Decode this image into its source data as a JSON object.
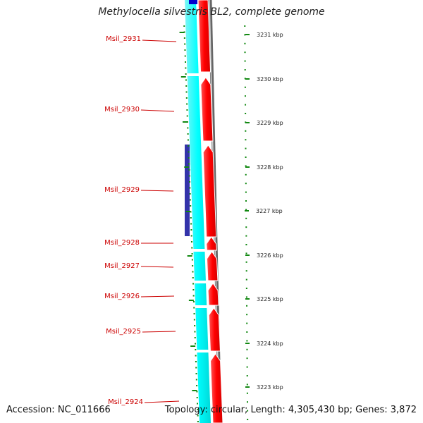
{
  "title": "Methylocella silvestris BL2, complete genome",
  "footer": {
    "accession": "Accession: NC_011666",
    "summary": "Topology: circular; Length: 4,305,430 bp; Genes: 3,872"
  },
  "colors": {
    "reverse_strand": "#00ffff",
    "forward_strand": "#ff0000",
    "rrna_feature": "#3333aa",
    "backbone": "#808080",
    "tick": "#118811",
    "label": "#cc0000"
  },
  "genes": [
    {
      "name": "Msil_2931"
    },
    {
      "name": "Msil_2930"
    },
    {
      "name": "Msil_2929"
    },
    {
      "name": "Msil_2928"
    },
    {
      "name": "Msil_2927"
    },
    {
      "name": "Msil_2926"
    },
    {
      "name": "Msil_2925"
    },
    {
      "name": "Msil_2924"
    }
  ],
  "scale": [
    {
      "label": "3231 kbp"
    },
    {
      "label": "3230 kbp"
    },
    {
      "label": "3229 kbp"
    },
    {
      "label": "3228 kbp"
    },
    {
      "label": "3227 kbp"
    },
    {
      "label": "3226 kbp"
    },
    {
      "label": "3225 kbp"
    },
    {
      "label": "3224 kbp"
    },
    {
      "label": "3223 kbp"
    }
  ]
}
